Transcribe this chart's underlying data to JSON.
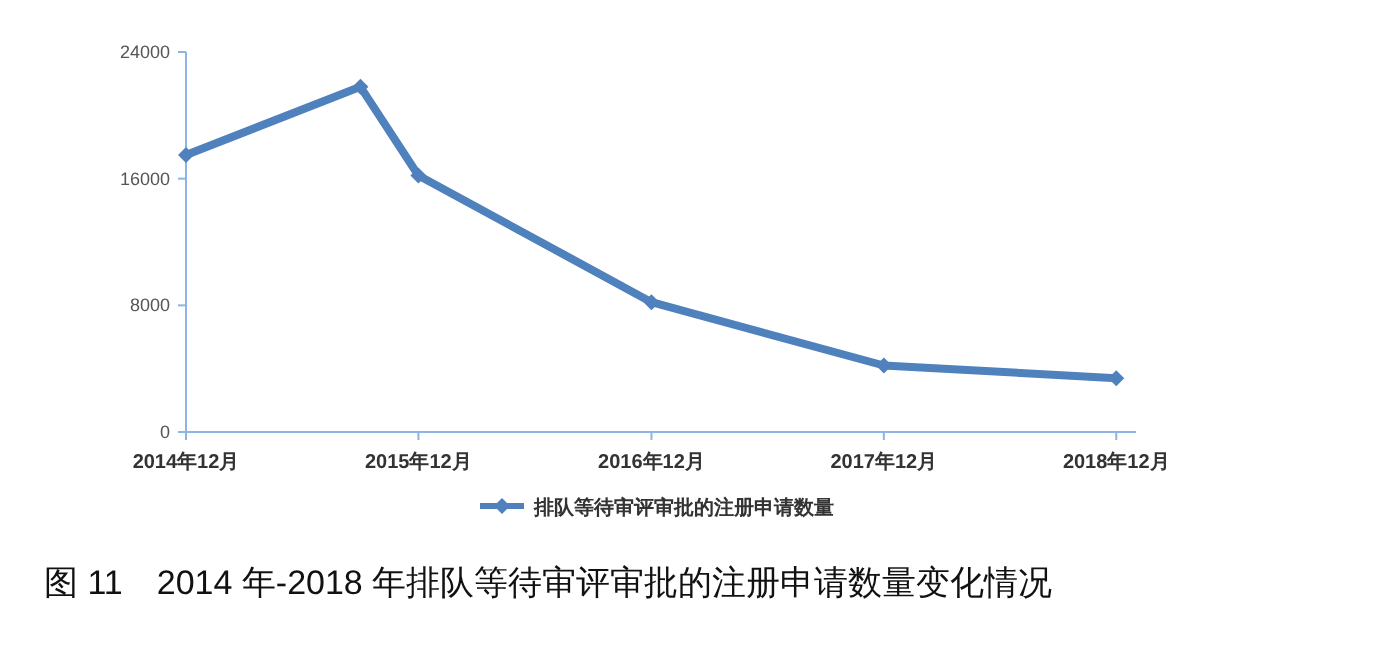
{
  "chart_data": {
    "type": "line",
    "title": "图 11　2014 年-2018 年排队等待审评审批的注册申请数量变化情况",
    "x": [
      "2014-12",
      "2015-09",
      "2015-12",
      "2016-12",
      "2017-12",
      "2018-12"
    ],
    "series": [
      {
        "name": "排队等待审评审批的注册申请数量",
        "color": "#4f81bd",
        "values": [
          17500,
          21800,
          16200,
          8200,
          4200,
          3400
        ]
      }
    ],
    "xlim": [
      "2014-12",
      "2019-01"
    ],
    "xticks": [
      {
        "value": "2014-12",
        "label": "2014年12月"
      },
      {
        "value": "2015-12",
        "label": "2015年12月"
      },
      {
        "value": "2016-12",
        "label": "2016年12月"
      },
      {
        "value": "2017-12",
        "label": "2017年12月"
      },
      {
        "value": "2018-12",
        "label": "2018年12月"
      }
    ],
    "ylim": [
      0,
      24000
    ],
    "yticks": [
      0,
      8000,
      16000,
      24000
    ],
    "grid": false,
    "legend": "bottom",
    "marker": "diamond",
    "line_style": "solid"
  }
}
